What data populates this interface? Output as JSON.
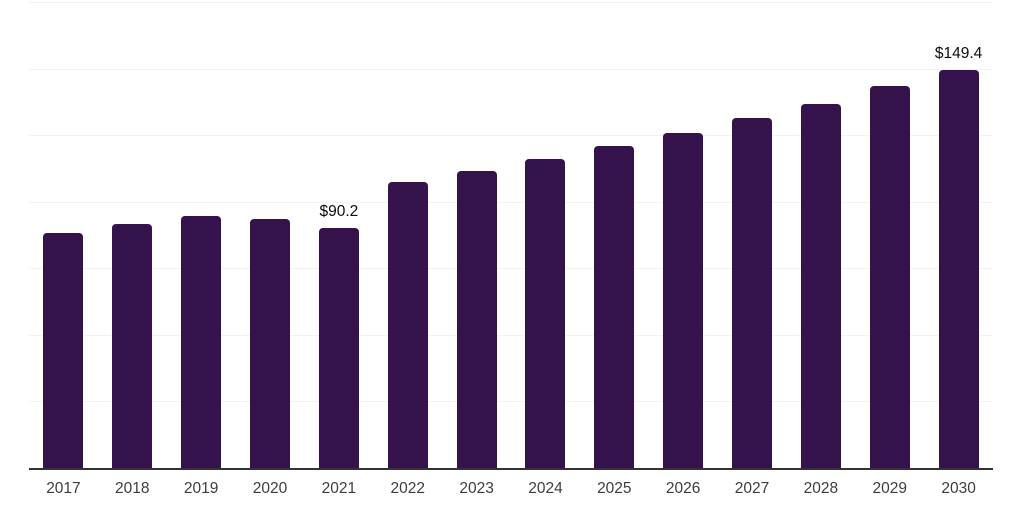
{
  "chart_data": {
    "type": "bar",
    "title": "",
    "xlabel": "",
    "ylabel": "",
    "categories": [
      "2017",
      "2018",
      "2019",
      "2020",
      "2021",
      "2022",
      "2023",
      "2024",
      "2025",
      "2026",
      "2027",
      "2028",
      "2029",
      "2030"
    ],
    "values": [
      88.4,
      91.5,
      94.5,
      93.5,
      90.2,
      107.3,
      111.4,
      115.9,
      120.8,
      125.7,
      131.4,
      136.6,
      143.4,
      149.4
    ],
    "data_labels": [
      {
        "category": "2021",
        "text": "$90.2"
      },
      {
        "category": "2030",
        "text": "$149.4"
      }
    ],
    "ylim": [
      0,
      175
    ],
    "grid_step": 25,
    "grid": "horizontal faint lines, no y tick labels",
    "y_tick_labels_visible": false,
    "legend_visible": false
  },
  "colors": {
    "bar": "#35124b",
    "axis_line": "#333333",
    "gridline": "#f2f2f4",
    "tick_label": "#3d3d3d",
    "data_label": "#0d0d0d",
    "background": "#ffffff"
  }
}
